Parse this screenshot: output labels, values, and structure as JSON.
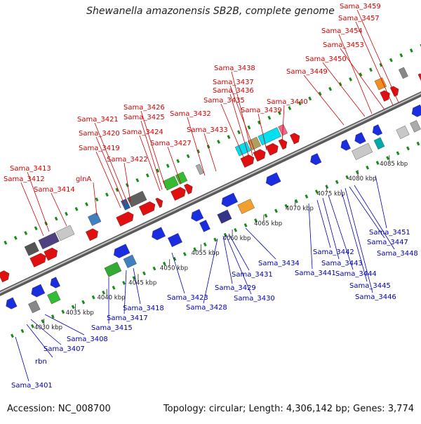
{
  "title": "Shewanella amazonensis SB2B, complete genome",
  "footer": {
    "accession": "Accession: NC_008700",
    "summary": "Topology: circular; Length: 4,306,142 bp; Genes: 3,774"
  },
  "colors": {
    "forward": "#e01010",
    "reverse": "#1a2ee0",
    "top_label": "#d40000",
    "bottom_label": "#0000b8",
    "backbone": "#8a8a8a",
    "tick": "#1a8a1a"
  },
  "kbp_labels": [
    "4030 kbp",
    "4035 kbp",
    "4040 kbp",
    "4045 kbp",
    "4050 kbp",
    "4055 kbp",
    "4060 kbp",
    "4065 kbp",
    "4070 kbp",
    "4075 kbp",
    "4080 kbp",
    "4085 kbp"
  ],
  "top_labels": [
    "Sama_3413",
    "Sama_3412",
    "Sama_3414",
    "glnA",
    "Sama_3421",
    "Sama_3420",
    "Sama_3419",
    "Sama_3422",
    "Sama_3426",
    "Sama_3425",
    "Sama_3424",
    "Sama_3427",
    "Sama_3432",
    "Sama_3433",
    "Sama_3438",
    "Sama_3437",
    "Sama_3436",
    "Sama_3435",
    "Sama_3439",
    "Sama_3440",
    "Sama_3449",
    "Sama_3450",
    "Sama_3453",
    "Sama_3454",
    "Sama_3457",
    "Sama_3459"
  ],
  "bottom_labels": [
    "Sama_3401",
    "rbn",
    "Sama_3407",
    "Sama_3408",
    "Sama_3415",
    "Sama_3417",
    "Sama_3418",
    "Sama_3423",
    "Sama_3428",
    "Sama_3429",
    "Sama_3430",
    "Sama_3431",
    "Sama_3434",
    "Sama_3441",
    "Sama_3442",
    "Sama_3443",
    "Sama_3444",
    "Sama_3445",
    "Sama_3446",
    "Sama_3448",
    "Sama_3447",
    "Sama_3451"
  ]
}
